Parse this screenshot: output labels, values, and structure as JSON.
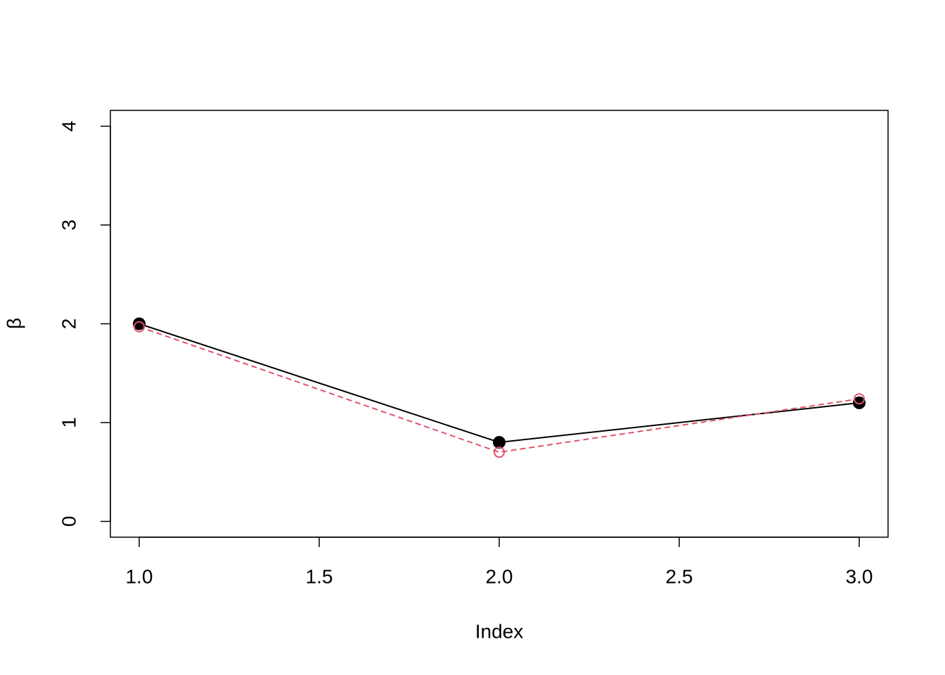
{
  "chart_data": {
    "type": "line",
    "x": [
      1,
      2,
      3
    ],
    "series": [
      {
        "color": "#000000",
        "line": "solid",
        "marker": "filled",
        "values": [
          2,
          0.8,
          1.2
        ]
      },
      {
        "color": "#df536b",
        "line": "dashed",
        "marker": "open",
        "values": [
          1.97,
          0.7,
          1.24
        ]
      }
    ],
    "xlabel": "Index",
    "ylabel": "β",
    "xlim": [
      0.92,
      3.08
    ],
    "xticks": [
      {
        "value": 1,
        "label": "1.0"
      },
      {
        "value": 1.5,
        "label": "1.5"
      },
      {
        "value": 2,
        "label": "2.0"
      },
      {
        "value": 2.5,
        "label": "2.5"
      },
      {
        "value": 3,
        "label": "3.0"
      }
    ],
    "ylim": [
      -0.16,
      4.16
    ],
    "yticks": [
      0,
      1,
      2,
      3,
      4
    ]
  }
}
